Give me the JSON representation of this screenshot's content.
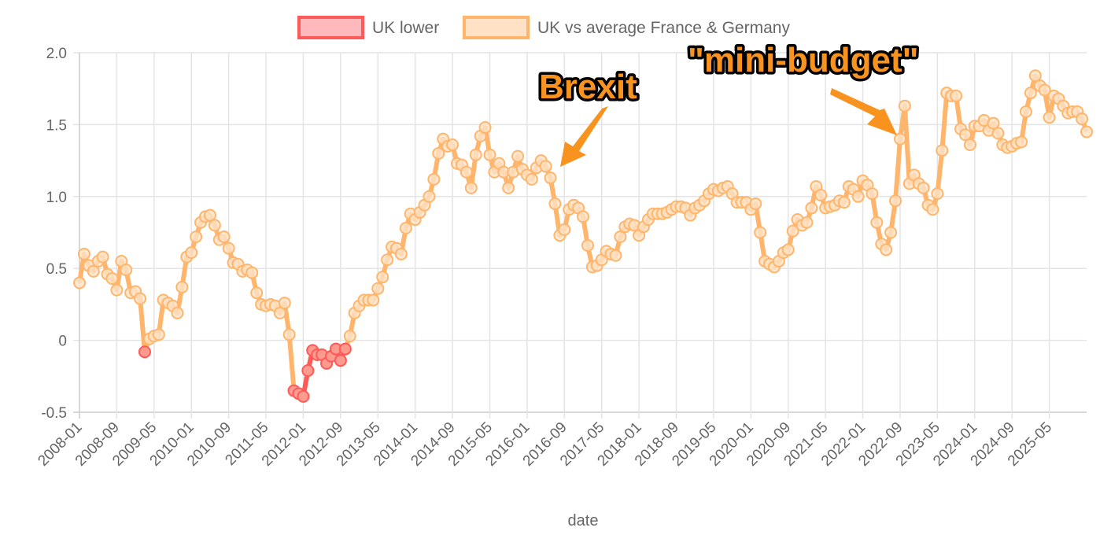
{
  "chart_data": {
    "type": "line",
    "title": "",
    "xlabel": "date",
    "ylabel": "",
    "ylim": [
      -0.5,
      2.0
    ],
    "yticks": [
      "2.0",
      "1.5",
      "1.0",
      "0.5",
      "0",
      "-0.5"
    ],
    "ytick_values": [
      2.0,
      1.5,
      1.0,
      0.5,
      0,
      -0.5
    ],
    "grid": true,
    "legend_position": "top-center",
    "x_start": "2008-01",
    "x_frequency": "monthly",
    "xtick_labels": [
      "2008-01",
      "2008-09",
      "2009-05",
      "2010-01",
      "2010-09",
      "2011-05",
      "2012-01",
      "2012-09",
      "2013-05",
      "2014-01",
      "2014-09",
      "2015-05",
      "2016-01",
      "2016-09",
      "2017-05",
      "2018-01",
      "2018-09",
      "2019-05",
      "2020-01",
      "2020-09",
      "2021-05",
      "2022-01",
      "2022-09",
      "2023-05",
      "2024-01",
      "2024-09",
      "2025-05"
    ],
    "series": [
      {
        "name": "UK vs average France & Germany",
        "color": "#FFB56B",
        "fill": "#FFE2C6",
        "values": [
          0.4,
          0.6,
          0.52,
          0.48,
          0.55,
          0.58,
          0.46,
          0.43,
          0.35,
          0.55,
          0.49,
          0.33,
          0.34,
          0.29,
          -0.08,
          0.01,
          0.03,
          0.04,
          0.28,
          0.26,
          0.24,
          0.19,
          0.37,
          0.58,
          0.61,
          0.72,
          0.82,
          0.86,
          0.87,
          0.8,
          0.7,
          0.72,
          0.64,
          0.54,
          0.53,
          0.48,
          0.49,
          0.47,
          0.33,
          0.25,
          0.24,
          0.25,
          0.24,
          0.19,
          0.26,
          0.04,
          -0.35,
          -0.37,
          -0.39,
          -0.21,
          -0.07,
          -0.1,
          -0.1,
          -0.16,
          -0.11,
          -0.06,
          -0.14,
          -0.06,
          0.03,
          0.19,
          0.24,
          0.28,
          0.28,
          0.28,
          0.36,
          0.44,
          0.56,
          0.65,
          0.64,
          0.6,
          0.78,
          0.88,
          0.84,
          0.89,
          0.94,
          1.0,
          1.12,
          1.3,
          1.4,
          1.35,
          1.36,
          1.23,
          1.22,
          1.17,
          1.06,
          1.29,
          1.42,
          1.48,
          1.29,
          1.17,
          1.23,
          1.17,
          1.06,
          1.17,
          1.28,
          1.19,
          1.15,
          1.12,
          1.2,
          1.25,
          1.21,
          1.13,
          0.95,
          0.73,
          0.77,
          0.91,
          0.94,
          0.92,
          0.86,
          0.66,
          0.51,
          0.52,
          0.56,
          0.62,
          0.6,
          0.59,
          0.72,
          0.79,
          0.81,
          0.8,
          0.73,
          0.79,
          0.84,
          0.88,
          0.88,
          0.88,
          0.89,
          0.91,
          0.93,
          0.93,
          0.92,
          0.87,
          0.92,
          0.94,
          0.97,
          1.02,
          1.05,
          1.04,
          1.06,
          1.07,
          1.02,
          0.96,
          0.96,
          0.96,
          0.91,
          0.95,
          0.75,
          0.55,
          0.53,
          0.51,
          0.55,
          0.61,
          0.63,
          0.76,
          0.84,
          0.8,
          0.82,
          0.92,
          1.07,
          1.01,
          0.92,
          0.93,
          0.94,
          0.97,
          0.96,
          1.07,
          1.05,
          1.0,
          1.11,
          1.08,
          1.02,
          0.82,
          0.67,
          0.63,
          0.75,
          0.97,
          1.4,
          1.63,
          1.09,
          1.15,
          1.09,
          1.06,
          0.94,
          0.91,
          1.02,
          1.32,
          1.72,
          1.7,
          1.7,
          1.47,
          1.43,
          1.36,
          1.49,
          1.49,
          1.53,
          1.46,
          1.51,
          1.44,
          1.36,
          1.34,
          1.35,
          1.37,
          1.38,
          1.59,
          1.72,
          1.84,
          1.77,
          1.74,
          1.55,
          1.7,
          1.68,
          1.63,
          1.58,
          1.59,
          1.59,
          1.54,
          1.45
        ]
      },
      {
        "name": "UK lower",
        "color": "#FF5A5A",
        "fill": "#FFB9BC",
        "segments": [
          {
            "start": "2009-03",
            "values": [
              -0.08
            ]
          },
          {
            "start": "2011-11",
            "values": [
              -0.35,
              -0.37,
              -0.39,
              -0.21,
              -0.07,
              -0.1,
              -0.1,
              -0.16,
              -0.11,
              -0.06,
              -0.14,
              -0.06
            ]
          }
        ]
      }
    ],
    "annotations": [
      {
        "text": "Brexit",
        "target": "2016-06",
        "color": "#F7931E"
      },
      {
        "text": "\"mini-budget\"",
        "target": "2022-09",
        "color": "#F7931E"
      }
    ]
  }
}
